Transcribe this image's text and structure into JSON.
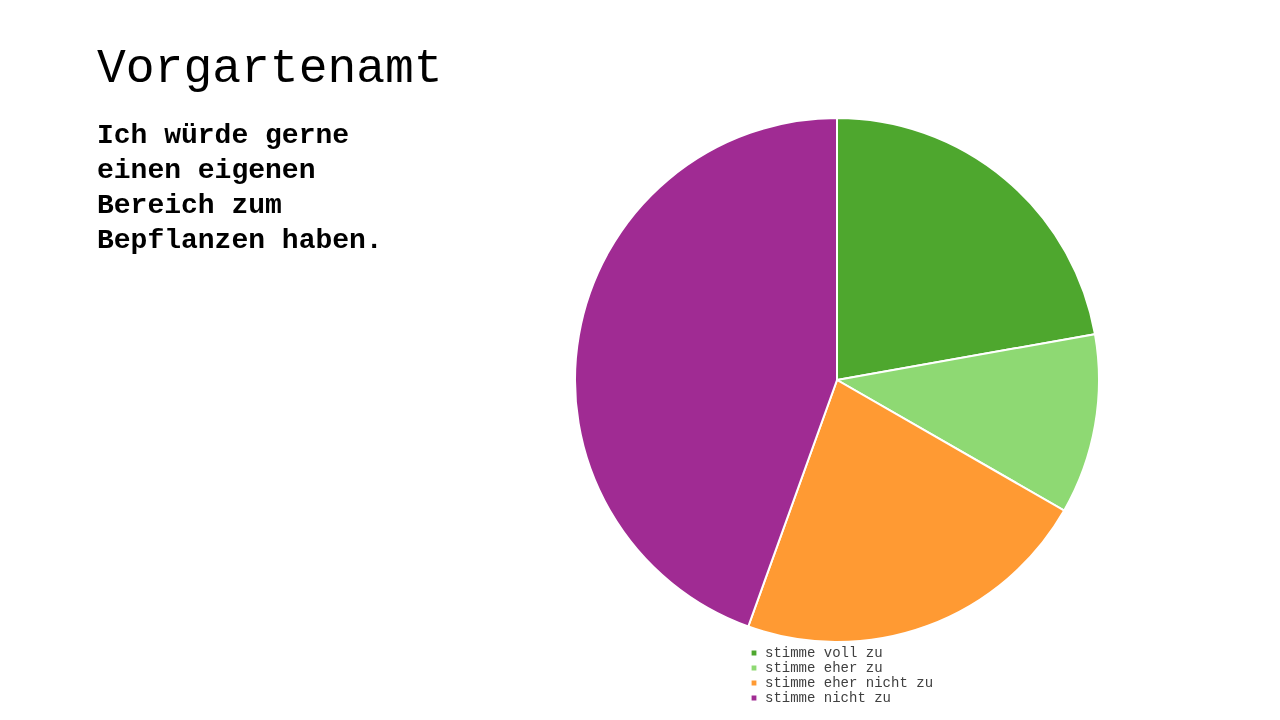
{
  "chart_data": {
    "type": "pie",
    "title": "Vorgartenamt",
    "subtitle": "Ich würde gerne einen eigenen Bereich zum Bepflanzen haben.",
    "categories": [
      "stimme voll zu",
      "stimme eher zu",
      "stimme eher nicht zu",
      "stimme nicht zu"
    ],
    "values": [
      22.2,
      11.1,
      22.2,
      44.5
    ],
    "colors": [
      "#4ea72e",
      "#8ed973",
      "#ff9a33",
      "#a02b93"
    ],
    "legend": "bottom"
  }
}
